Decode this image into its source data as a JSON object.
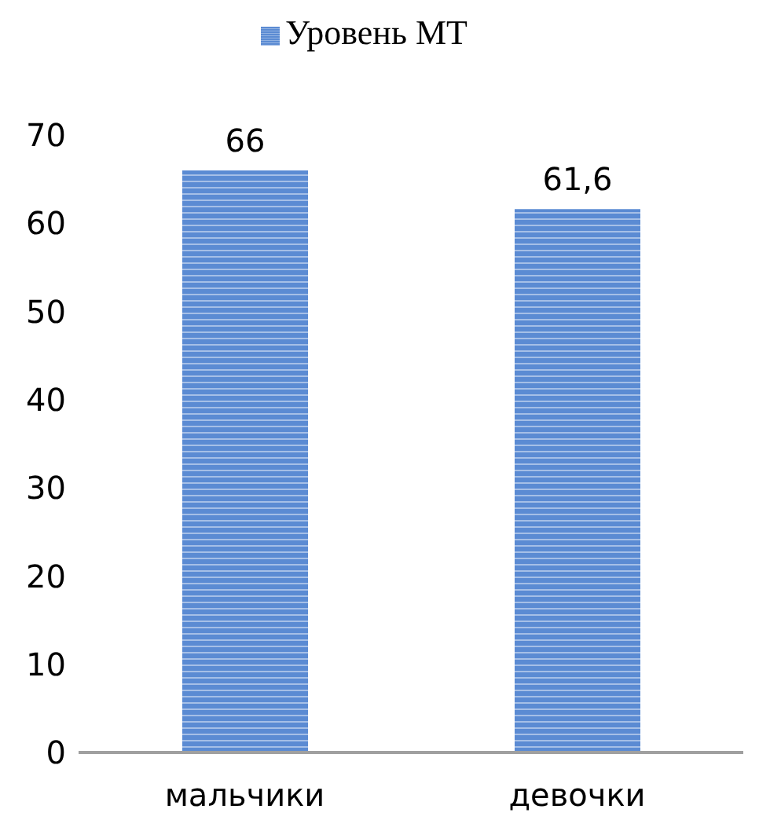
{
  "chart_data": {
    "type": "bar",
    "categories": [
      "мальчики",
      "девочки"
    ],
    "series": [
      {
        "name": "Уровень МТ",
        "color": "#5b8bd3",
        "values": [
          66,
          61.6
        ],
        "value_labels": [
          "66",
          "61,6"
        ]
      }
    ],
    "ylim": [
      0,
      70
    ],
    "yticks": [
      0,
      10,
      20,
      30,
      40,
      50,
      60,
      70
    ],
    "grid": false,
    "legend": "top"
  }
}
